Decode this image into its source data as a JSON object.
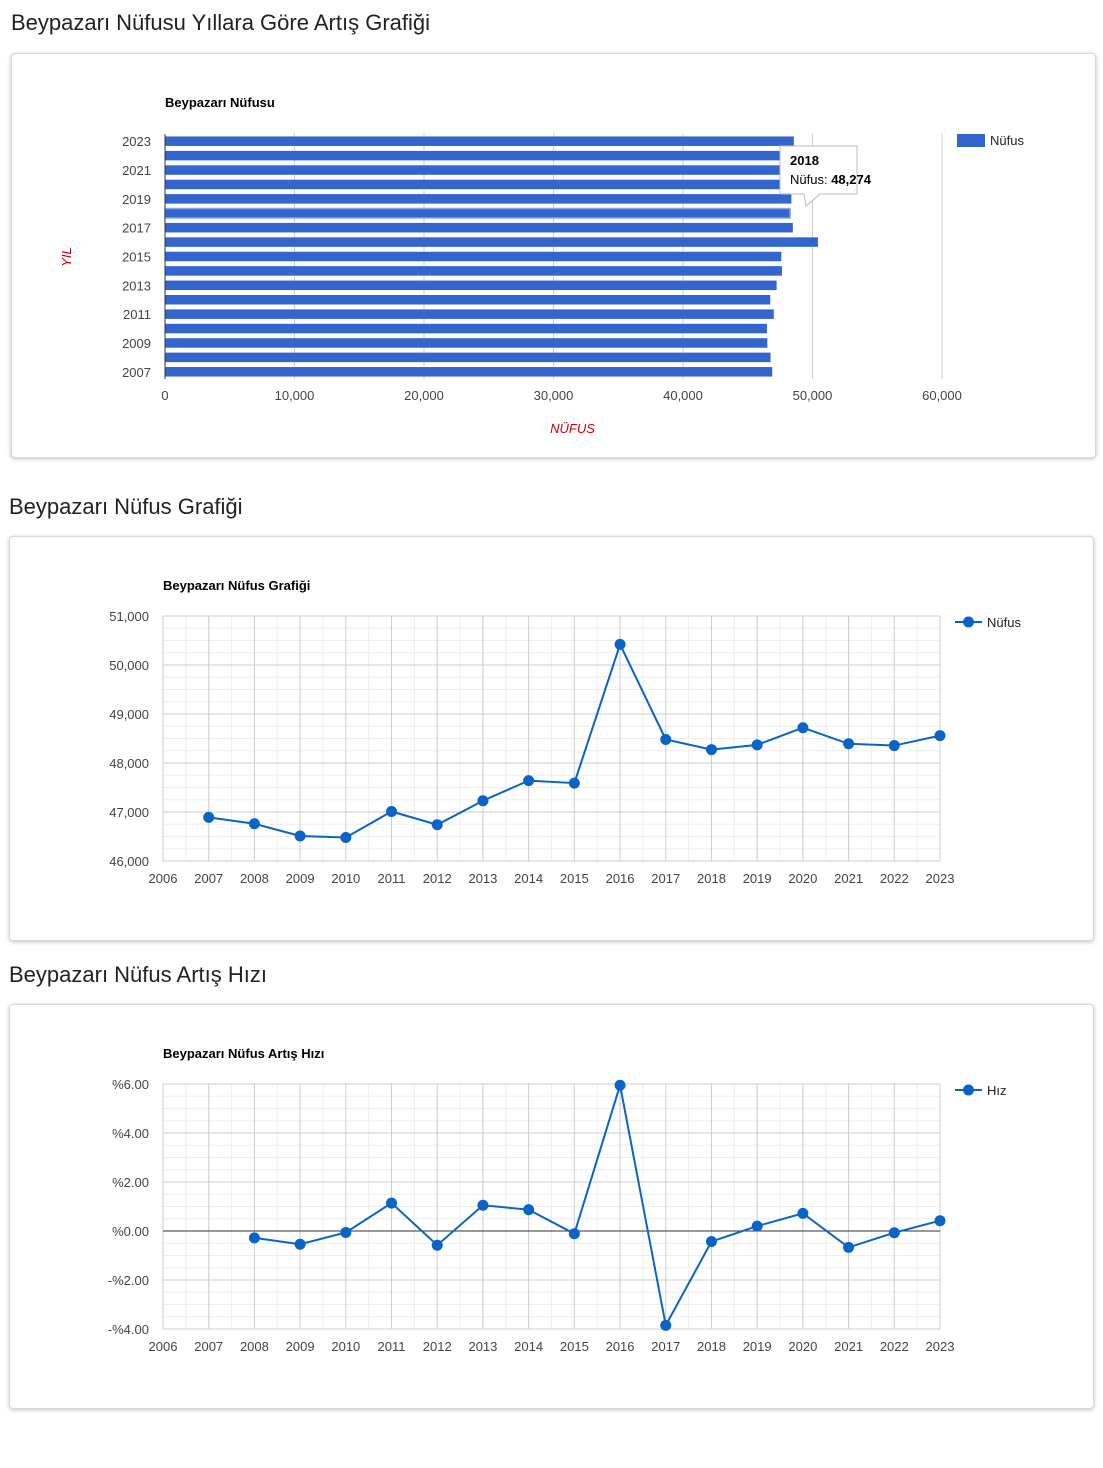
{
  "sections": [
    {
      "title": "Beypazarı Nüfusu Yıllara Göre Artış Grafiği"
    },
    {
      "title": "Beypazarı Nüfus Grafiği"
    },
    {
      "title": "Beypazarı Nüfus Artış Hızı"
    }
  ],
  "colors": {
    "bar": "#3366cc",
    "line": "#0a64c8",
    "axis_title": "#cc0000",
    "grid_major": "#cccccc",
    "grid_minor": "#eeeeee",
    "text": "#444444"
  },
  "chart_data": [
    {
      "type": "bar",
      "orientation": "horizontal",
      "title": "Beypazarı Nüfusu",
      "xlabel": "NÜFUS",
      "ylabel": "YIL",
      "categories": [
        "2023",
        "2022",
        "2021",
        "2020",
        "2019",
        "2018",
        "2017",
        "2016",
        "2015",
        "2014",
        "2013",
        "2012",
        "2011",
        "2010",
        "2009",
        "2008",
        "2007"
      ],
      "category_tick_labels": [
        "2023",
        "2021",
        "2019",
        "2017",
        "2015",
        "2013",
        "2011",
        "2009",
        "2007"
      ],
      "series": [
        {
          "name": "Nüfus",
          "values": [
            48558,
            48356,
            48392,
            48720,
            48370,
            48274,
            48480,
            50420,
            47590,
            47640,
            47230,
            46740,
            47010,
            46480,
            46510,
            46760,
            46890
          ]
        }
      ],
      "xlim": [
        0,
        60000
      ],
      "xticks": [
        0,
        10000,
        20000,
        30000,
        40000,
        50000,
        60000
      ],
      "xtick_labels": [
        "0",
        "10,000",
        "20,000",
        "30,000",
        "40,000",
        "50,000",
        "60,000"
      ],
      "legend": "right",
      "tooltip": {
        "category": "2018",
        "label": "Nüfus:",
        "value": "48,274"
      }
    },
    {
      "type": "line",
      "title": "Beypazarı Nüfus Grafiği",
      "x": [
        2007,
        2008,
        2009,
        2010,
        2011,
        2012,
        2013,
        2014,
        2015,
        2016,
        2017,
        2018,
        2019,
        2020,
        2021,
        2022,
        2023
      ],
      "series": [
        {
          "name": "Nüfus",
          "values": [
            46890,
            46760,
            46510,
            46480,
            47010,
            46740,
            47230,
            47640,
            47590,
            50420,
            48480,
            48274,
            48370,
            48720,
            48392,
            48356,
            48558
          ]
        }
      ],
      "xlim": [
        2006,
        2023
      ],
      "ylim": [
        46000,
        51000
      ],
      "xtick_labels": [
        "2006",
        "2007",
        "2008",
        "2009",
        "2010",
        "2011",
        "2012",
        "2013",
        "2014",
        "2015",
        "2016",
        "2017",
        "2018",
        "2019",
        "2020",
        "2021",
        "2022",
        "2023"
      ],
      "yticks": [
        46000,
        47000,
        48000,
        49000,
        50000,
        51000
      ],
      "ytick_labels": [
        "46,000",
        "47,000",
        "48,000",
        "49,000",
        "50,000",
        "51,000"
      ],
      "grid": true,
      "legend": "right"
    },
    {
      "type": "line",
      "title": "Beypazarı Nüfus Artış Hızı",
      "x": [
        2008,
        2009,
        2010,
        2011,
        2012,
        2013,
        2014,
        2015,
        2016,
        2017,
        2018,
        2019,
        2020,
        2021,
        2022,
        2023
      ],
      "series": [
        {
          "name": "Hız",
          "values": [
            -0.28,
            -0.54,
            -0.06,
            1.14,
            -0.58,
            1.05,
            0.87,
            -0.11,
            5.95,
            -3.85,
            -0.43,
            0.2,
            0.72,
            -0.67,
            -0.07,
            0.42
          ]
        }
      ],
      "xlim": [
        2006,
        2023
      ],
      "ylim": [
        -4,
        6
      ],
      "xtick_labels": [
        "2006",
        "2007",
        "2008",
        "2009",
        "2010",
        "2011",
        "2012",
        "2013",
        "2014",
        "2015",
        "2016",
        "2017",
        "2018",
        "2019",
        "2020",
        "2021",
        "2022",
        "2023"
      ],
      "yticks": [
        -4,
        -2,
        0,
        2,
        4,
        6
      ],
      "ytick_labels": [
        "-%4.00",
        "-%2.00",
        "%0.00",
        "%2.00",
        "%4.00",
        "%6.00"
      ],
      "grid": true,
      "legend": "right"
    }
  ]
}
